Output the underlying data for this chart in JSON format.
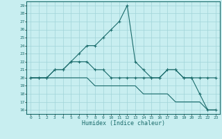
{
  "line1_x": [
    0,
    1,
    2,
    3,
    4,
    5,
    6,
    7,
    8,
    9,
    10,
    11,
    12,
    13,
    14,
    15,
    16,
    17,
    18,
    19,
    20,
    21,
    22,
    23
  ],
  "line1_y": [
    20,
    20,
    20,
    21,
    21,
    22,
    23,
    24,
    24,
    25,
    26,
    27,
    29,
    22,
    21,
    20,
    20,
    21,
    21,
    20,
    20,
    18,
    16,
    16
  ],
  "line2_x": [
    0,
    1,
    2,
    3,
    4,
    5,
    6,
    7,
    8,
    9,
    10,
    11,
    12,
    13,
    14,
    15,
    16,
    17,
    18,
    19,
    20,
    21,
    22,
    23
  ],
  "line2_y": [
    20,
    20,
    20,
    21,
    21,
    22,
    22,
    22,
    21,
    21,
    20,
    20,
    20,
    20,
    20,
    20,
    20,
    21,
    21,
    20,
    20,
    20,
    20,
    20
  ],
  "line3_x": [
    0,
    1,
    2,
    3,
    4,
    5,
    6,
    7,
    8,
    9,
    10,
    11,
    12,
    13,
    14,
    15,
    16,
    17,
    18,
    19,
    20,
    21,
    22,
    23
  ],
  "line3_y": [
    20,
    20,
    20,
    20,
    20,
    20,
    20,
    20,
    19,
    19,
    19,
    19,
    19,
    19,
    18,
    18,
    18,
    18,
    17,
    17,
    17,
    17,
    16,
    16
  ],
  "color": "#1a6b6b",
  "bg_color": "#c8eef0",
  "grid_color": "#a0d4d8",
  "xlabel": "Humidex (Indice chaleur)",
  "xlim": [
    -0.5,
    23.5
  ],
  "ylim": [
    15.5,
    29.5
  ],
  "xticks": [
    0,
    1,
    2,
    3,
    4,
    5,
    6,
    7,
    8,
    9,
    10,
    11,
    12,
    13,
    14,
    15,
    16,
    17,
    18,
    19,
    20,
    21,
    22,
    23
  ],
  "yticks": [
    16,
    17,
    18,
    19,
    20,
    21,
    22,
    23,
    24,
    25,
    26,
    27,
    28,
    29
  ],
  "marker": "+"
}
